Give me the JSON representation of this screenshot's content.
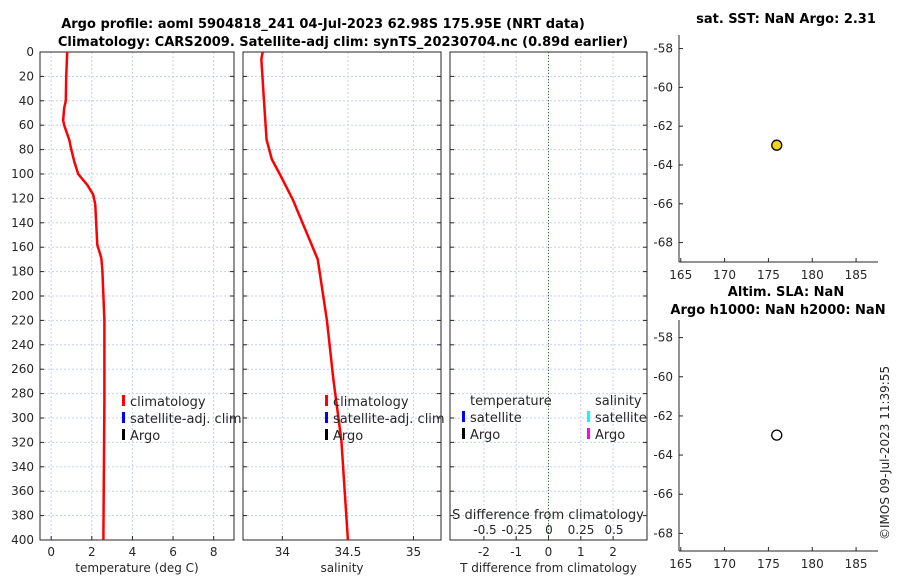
{
  "title": {
    "line1": "Argo profile: aoml 5904818_241 04-Jul-2023 62.98S 175.95E (NRT data)",
    "line2": "Climatology: CARS2009. Satellite-adj clim: synTS_20230704.nc (0.89d earlier)"
  },
  "watermark": "©IMOS 09-Jul-2023 11:39:55",
  "colors": {
    "climatology": "#ff0000",
    "satellite_t": "#0000ff",
    "argo_t": "#000000",
    "satellite_s": "#00ffff",
    "argo_s": "#ff00ff",
    "marker_fill": "#f2d21b"
  },
  "chart_data": [
    {
      "type": "line",
      "name": "temperature",
      "xlabel": "temperature (deg C)",
      "ylabel": "",
      "xlim": [
        -0.55,
        9.0
      ],
      "ylim": [
        0,
        400
      ],
      "y_reversed": true,
      "grid": true,
      "xticks": [
        0,
        2,
        4,
        6,
        8
      ],
      "yticks": [
        0,
        20,
        40,
        60,
        80,
        100,
        120,
        140,
        160,
        180,
        200,
        220,
        240,
        260,
        280,
        300,
        320,
        340,
        360,
        380,
        400
      ],
      "series": [
        {
          "name": "climatology",
          "x": [
            0.79,
            0.74,
            0.72,
            0.64,
            0.59,
            0.64,
            0.89,
            0.99,
            1.14,
            1.33,
            1.78,
            2.07,
            2.17,
            2.27,
            2.47,
            2.52,
            2.62,
            2.62,
            2.57
          ],
          "y": [
            0,
            20,
            40,
            46,
            56,
            60,
            72,
            80,
            90,
            100,
            109,
            117,
            125,
            158,
            169,
            179,
            220,
            285,
            400
          ]
        }
      ],
      "legend": [
        "climatology",
        "satellite-adj. clim",
        "Argo"
      ]
    },
    {
      "type": "line",
      "name": "salinity",
      "xlabel": "salinity",
      "ylabel": "",
      "xlim": [
        33.7,
        35.21
      ],
      "ylim": [
        0,
        400
      ],
      "y_reversed": true,
      "grid": true,
      "xticks": [
        34,
        34.5,
        35
      ],
      "series": [
        {
          "name": "climatology",
          "x": [
            33.85,
            33.84,
            33.86,
            33.88,
            33.92,
            33.98,
            34.08,
            34.27,
            34.34,
            34.39,
            34.45,
            34.5
          ],
          "y": [
            0,
            6,
            40,
            72,
            88,
            100,
            121,
            170,
            220,
            269,
            318,
            400
          ]
        }
      ],
      "legend": [
        "climatology",
        "satellite-adj. clim",
        "Argo"
      ]
    },
    {
      "type": "line",
      "name": "difference",
      "xlabel": "T difference from climatology",
      "x2label": "S difference from climatology",
      "xlim": [
        -3.05,
        3.05
      ],
      "ylim": [
        0,
        400
      ],
      "grid": true,
      "xticks": [
        -2,
        -1,
        0,
        1,
        2
      ],
      "x2ticks": [
        "-0.5",
        "-0.25",
        "0",
        "0.25",
        "0.5"
      ],
      "legend_temperature": {
        "header": "temperature",
        "items": [
          "satellite",
          "Argo"
        ]
      },
      "legend_salinity": {
        "header": "salinity",
        "items": [
          "satellite",
          "Argo"
        ]
      }
    },
    {
      "type": "scatter",
      "name": "sst-map",
      "title": "sat. SST: NaN Argo: 2.31",
      "xlim": [
        164.8,
        187.5
      ],
      "ylim": [
        -69.0,
        -57.3
      ],
      "xticks": [
        165,
        170,
        175,
        180,
        185
      ],
      "yticks": [
        -58,
        -60,
        -62,
        -64,
        -66,
        -68
      ],
      "points": [
        {
          "lon": 175.95,
          "lat": -62.98,
          "filled": true
        }
      ]
    },
    {
      "type": "scatter",
      "name": "sla-map",
      "title": "Altim. SLA: NaN",
      "title2": "Argo h1000: NaN h2000: NaN",
      "xlim": [
        164.8,
        187.5
      ],
      "ylim": [
        -68.9,
        -57.1
      ],
      "xticks": [
        165,
        170,
        175,
        180,
        185
      ],
      "yticks": [
        -58,
        -60,
        -62,
        -64,
        -66,
        -68
      ],
      "points": [
        {
          "lon": 175.95,
          "lat": -62.98,
          "filled": false
        }
      ]
    }
  ]
}
